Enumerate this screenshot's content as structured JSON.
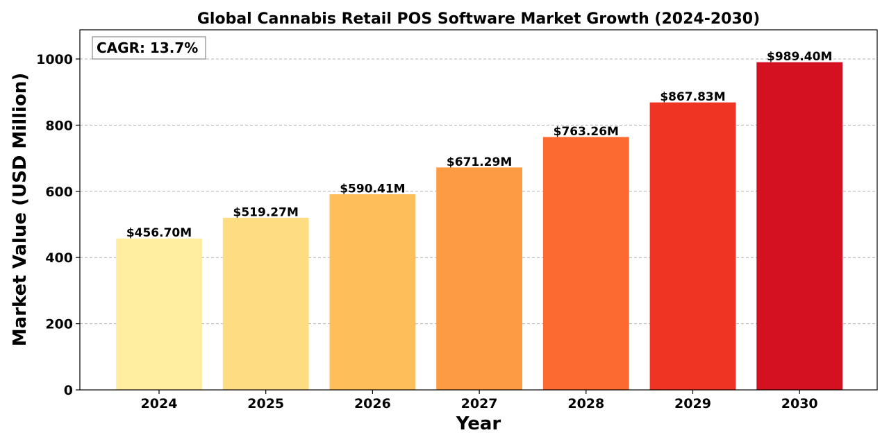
{
  "chart_data": {
    "type": "bar",
    "title": "Global Cannabis Retail POS Software Market Growth (2024-2030)",
    "xlabel": "Year",
    "ylabel": "Market Value (USD Million)",
    "categories": [
      "2024",
      "2025",
      "2026",
      "2027",
      "2028",
      "2029",
      "2030"
    ],
    "values": [
      456.7,
      519.27,
      590.41,
      671.29,
      763.26,
      867.83,
      989.4
    ],
    "data_labels": [
      "$456.70M",
      "$519.27M",
      "$590.41M",
      "$671.29M",
      "$763.26M",
      "$867.83M",
      "$989.40M"
    ],
    "colors": [
      "#FFEDA0",
      "#FDDC82",
      "#FEBF5A",
      "#FD9A44",
      "#FC6A32",
      "#F03424",
      "#D31121"
    ],
    "ylim": [
      0,
      1088
    ],
    "yticks": [
      0,
      200,
      400,
      600,
      800,
      1000
    ],
    "grid": "y-dashed",
    "annotation": "CAGR: 13.7%",
    "annotation_position": "top-left"
  }
}
